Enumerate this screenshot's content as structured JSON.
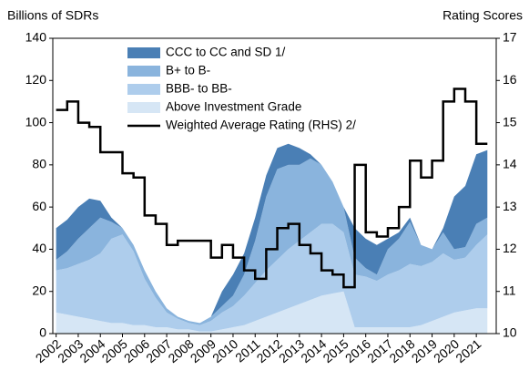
{
  "chart_data": {
    "type": "stacked_area_line",
    "y_label": "Billions of SDRs",
    "y2_label": "Rating Scores",
    "x": [
      2002,
      2002.5,
      2003,
      2003.5,
      2004,
      2004.5,
      2005,
      2005.5,
      2006,
      2006.5,
      2007,
      2007.5,
      2008,
      2008.5,
      2009,
      2009.5,
      2010,
      2010.5,
      2011,
      2011.5,
      2012,
      2012.5,
      2013,
      2013.5,
      2014,
      2014.5,
      2015,
      2015.5,
      2016,
      2016.5,
      2017,
      2017.5,
      2018,
      2018.5,
      2019,
      2019.5,
      2020,
      2020.5,
      2021,
      2021.5
    ],
    "xlim": [
      2001.85,
      2021.9
    ],
    "xticks": [
      2002,
      2003,
      2004,
      2005,
      2006,
      2007,
      2008,
      2009,
      2010,
      2011,
      2012,
      2013,
      2014,
      2015,
      2016,
      2017,
      2018,
      2019,
      2020,
      2021
    ],
    "ylim": [
      0,
      140
    ],
    "yticks": [
      0,
      20,
      40,
      60,
      80,
      100,
      120,
      140
    ],
    "y2lim": [
      10,
      17
    ],
    "y2ticks": [
      10,
      11,
      12,
      13,
      14,
      15,
      16,
      17
    ],
    "series": [
      {
        "name": "CCC to CC and SD 1/",
        "color": "#4a7fb5",
        "values": [
          15,
          15,
          15,
          14,
          8,
          2,
          0,
          0,
          0,
          0,
          0,
          0,
          0,
          0,
          0,
          7,
          10,
          10,
          11,
          10,
          10,
          10,
          8,
          2,
          0,
          0,
          0,
          14,
          14,
          14,
          5,
          3,
          2,
          0,
          0,
          2,
          25,
          29,
          33,
          32
        ]
      },
      {
        "name": "B+ to B-",
        "color": "#8ab4dd",
        "values": [
          5,
          8,
          12,
          15,
          17,
          8,
          3,
          3,
          4,
          3,
          2,
          1,
          1,
          1,
          2,
          3,
          5,
          10,
          20,
          35,
          43,
          40,
          36,
          35,
          28,
          20,
          12,
          8,
          4,
          3,
          12,
          15,
          20,
          10,
          6,
          10,
          5,
          5,
          10,
          8
        ]
      },
      {
        "name": "BBB- to BB-",
        "color": "#aecdec",
        "values": [
          20,
          22,
          25,
          28,
          32,
          40,
          42,
          35,
          22,
          14,
          7,
          5,
          3,
          3,
          5,
          8,
          10,
          14,
          18,
          22,
          25,
          28,
          30,
          32,
          34,
          33,
          28,
          25,
          24,
          22,
          25,
          27,
          30,
          28,
          28,
          30,
          25,
          25,
          30,
          35
        ]
      },
      {
        "name": "Above Investment Grade",
        "color": "#d6e6f5",
        "values": [
          10,
          9,
          8,
          7,
          6,
          5,
          5,
          4,
          4,
          3,
          3,
          2,
          2,
          1,
          1,
          2,
          3,
          4,
          6,
          8,
          10,
          12,
          14,
          16,
          18,
          19,
          20,
          3,
          3,
          3,
          3,
          3,
          3,
          4,
          6,
          8,
          10,
          11,
          12,
          12
        ]
      },
      {
        "name": "Weighted Average Rating (RHS) 2/",
        "color": "#000000",
        "axis": "y2",
        "values": [
          15.3,
          15.5,
          15.0,
          14.9,
          14.3,
          14.3,
          13.8,
          13.7,
          12.8,
          12.6,
          12.1,
          12.2,
          12.2,
          12.2,
          11.8,
          12.1,
          11.8,
          11.5,
          11.3,
          12.0,
          12.5,
          12.6,
          12.1,
          11.9,
          11.5,
          11.4,
          11.1,
          14.0,
          12.4,
          12.3,
          12.5,
          13.0,
          14.1,
          13.7,
          14.1,
          15.5,
          15.8,
          15.5,
          14.5,
          14.5
        ]
      }
    ]
  }
}
